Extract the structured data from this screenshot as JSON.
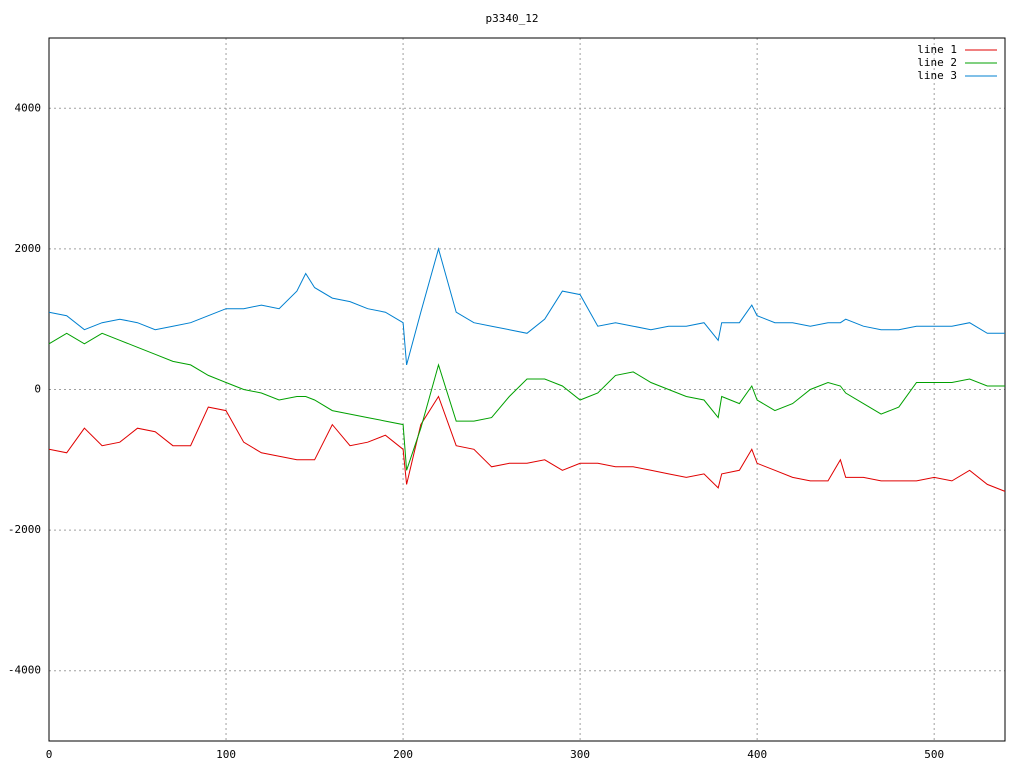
{
  "chart_data": {
    "type": "line",
    "title": "p3340_12",
    "x": [
      0,
      10,
      20,
      30,
      40,
      50,
      60,
      70,
      80,
      90,
      100,
      110,
      120,
      130,
      140,
      145,
      150,
      160,
      170,
      180,
      190,
      200,
      202,
      210,
      220,
      230,
      240,
      250,
      260,
      270,
      280,
      290,
      300,
      310,
      320,
      330,
      340,
      350,
      360,
      370,
      378,
      380,
      390,
      397,
      400,
      410,
      420,
      430,
      440,
      447,
      450,
      460,
      470,
      480,
      490,
      500,
      510,
      520,
      530,
      540
    ],
    "series": [
      {
        "name": "line 1",
        "color": "#e00000",
        "values": [
          -850,
          -900,
          -550,
          -800,
          -750,
          -550,
          -600,
          -800,
          -800,
          -250,
          -300,
          -750,
          -900,
          -950,
          -1000,
          -1000,
          -1000,
          -500,
          -800,
          -750,
          -650,
          -850,
          -1350,
          -500,
          -100,
          -800,
          -850,
          -1100,
          -1050,
          -1050,
          -1000,
          -1150,
          -1050,
          -1050,
          -1100,
          -1100,
          -1150,
          -1200,
          -1250,
          -1200,
          -1400,
          -1200,
          -1150,
          -850,
          -1050,
          -1150,
          -1250,
          -1300,
          -1300,
          -1000,
          -1250,
          -1250,
          -1300,
          -1300,
          -1300,
          -1250,
          -1300,
          -1150,
          -1350,
          -1450
        ]
      },
      {
        "name": "line 2",
        "color": "#00a000",
        "values": [
          650,
          800,
          650,
          800,
          700,
          600,
          500,
          400,
          350,
          200,
          100,
          0,
          -50,
          -150,
          -100,
          -100,
          -150,
          -300,
          -350,
          -400,
          -450,
          -500,
          -1150,
          -550,
          350,
          -450,
          -450,
          -400,
          -100,
          150,
          150,
          50,
          -150,
          -50,
          200,
          250,
          100,
          0,
          -100,
          -150,
          -400,
          -100,
          -200,
          50,
          -150,
          -300,
          -200,
          0,
          100,
          50,
          -50,
          -200,
          -350,
          -250,
          100,
          100,
          100,
          150,
          50,
          50
        ]
      },
      {
        "name": "line 3",
        "color": "#0080d0",
        "values": [
          1100,
          1050,
          850,
          950,
          1000,
          950,
          850,
          900,
          950,
          1050,
          1150,
          1150,
          1200,
          1150,
          1400,
          1650,
          1450,
          1300,
          1250,
          1150,
          1100,
          950,
          350,
          1100,
          2000,
          1100,
          950,
          900,
          850,
          800,
          1000,
          1400,
          1350,
          900,
          950,
          900,
          850,
          900,
          900,
          950,
          700,
          950,
          950,
          1200,
          1050,
          950,
          950,
          900,
          950,
          950,
          1000,
          900,
          850,
          850,
          900,
          900,
          900,
          950,
          800,
          800
        ]
      }
    ],
    "xlim": [
      0,
      540
    ],
    "ylim": [
      -5000,
      5000
    ],
    "xticks": [
      0,
      100,
      200,
      300,
      400,
      500
    ],
    "yticks": [
      -4000,
      -2000,
      0,
      2000,
      4000
    ],
    "grid": true,
    "legend": "top-right"
  }
}
